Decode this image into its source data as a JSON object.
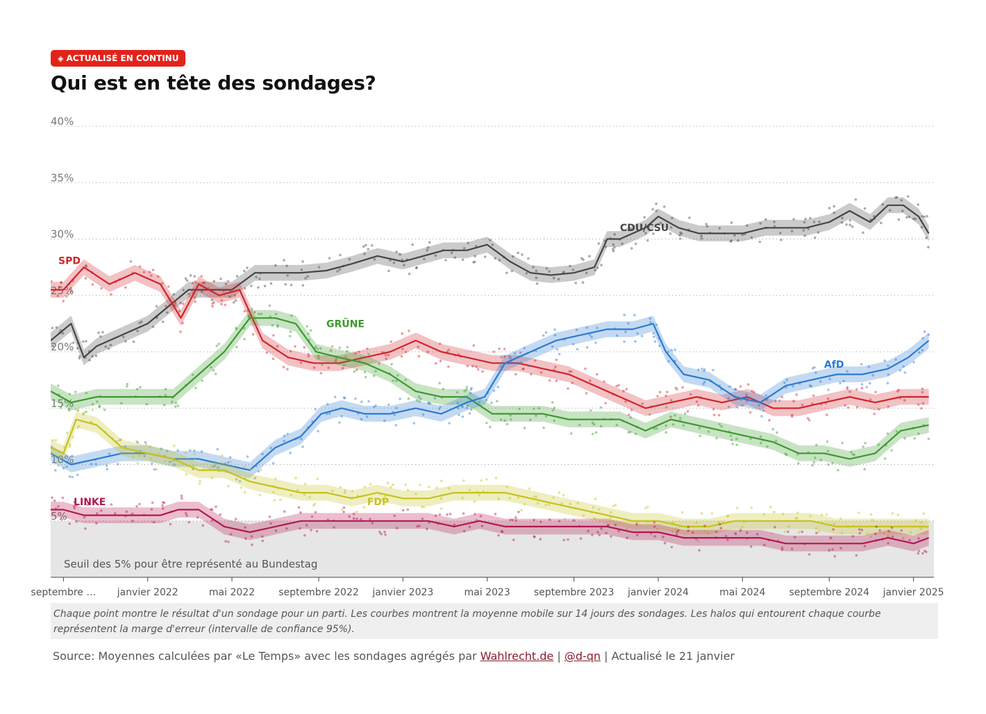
{
  "badge": {
    "icon": "diamond-icon",
    "label": "ACTUALISÉ EN CONTINU",
    "color": "#e2231a"
  },
  "title": "Qui est en tête des sondages?",
  "chart_data": {
    "type": "line",
    "title": "Qui est en tête des sondages?",
    "xlabel": "",
    "ylabel": "",
    "ylim": [
      0,
      40
    ],
    "xlim": [
      2021.62,
      2025.08
    ],
    "grid": true,
    "y_ticks": [
      "5%",
      "10%",
      "15%",
      "20%",
      "25%",
      "30%",
      "35%",
      "40%"
    ],
    "y_tick_values": [
      5,
      10,
      15,
      20,
      25,
      30,
      35,
      40
    ],
    "x_tick_values": [
      2021.67,
      2022.0,
      2022.33,
      2022.67,
      2023.0,
      2023.33,
      2023.67,
      2024.0,
      2024.33,
      2024.67,
      2025.0
    ],
    "x_ticks": [
      "septembre …",
      "janvier 2022",
      "mai 2022",
      "septembre 2022",
      "janvier 2023",
      "mai 2023",
      "septembre 2023",
      "janvier 2024",
      "mai 2024",
      "septembre 2024",
      "janvier 2025"
    ],
    "threshold": {
      "value": 5,
      "label": "Seuil des 5% pour être représenté au Bundestag"
    },
    "series": [
      {
        "name": "CDU/CSU",
        "color": "#454545",
        "x": [
          2021.62,
          2021.7,
          2021.75,
          2021.8,
          2021.9,
          2022.0,
          2022.08,
          2022.16,
          2022.25,
          2022.33,
          2022.42,
          2022.5,
          2022.6,
          2022.7,
          2022.8,
          2022.9,
          2023.0,
          2023.08,
          2023.16,
          2023.25,
          2023.33,
          2023.42,
          2023.5,
          2023.58,
          2023.67,
          2023.75,
          2023.8,
          2023.85,
          2023.95,
          2024.0,
          2024.08,
          2024.16,
          2024.25,
          2024.33,
          2024.42,
          2024.5,
          2024.58,
          2024.67,
          2024.75,
          2024.83,
          2024.9,
          2024.96,
          2025.02,
          2025.06
        ],
        "y": [
          21.0,
          22.5,
          19.5,
          20.5,
          21.5,
          22.5,
          24.0,
          25.5,
          25.5,
          25.5,
          27.0,
          27.0,
          27.0,
          27.2,
          27.8,
          28.5,
          28.0,
          28.5,
          29.0,
          29.0,
          29.5,
          28.0,
          27.0,
          26.8,
          27.0,
          27.5,
          30.0,
          30.0,
          31.0,
          32.0,
          31.0,
          30.5,
          30.5,
          30.5,
          31.0,
          31.0,
          31.0,
          31.5,
          32.5,
          31.5,
          33.0,
          33.0,
          32.0,
          30.5
        ]
      },
      {
        "name": "SPD",
        "color": "#d1232a",
        "x": [
          2021.62,
          2021.67,
          2021.75,
          2021.85,
          2021.95,
          2022.05,
          2022.13,
          2022.2,
          2022.28,
          2022.36,
          2022.45,
          2022.55,
          2022.65,
          2022.75,
          2022.85,
          2022.95,
          2023.05,
          2023.15,
          2023.25,
          2023.35,
          2023.45,
          2023.55,
          2023.65,
          2023.75,
          2023.85,
          2023.95,
          2024.05,
          2024.15,
          2024.25,
          2024.35,
          2024.45,
          2024.55,
          2024.65,
          2024.75,
          2024.85,
          2024.95,
          2025.06
        ],
        "y": [
          25.5,
          25.5,
          27.5,
          26.0,
          27.0,
          26.0,
          23.0,
          26.0,
          25.0,
          25.5,
          21.0,
          19.5,
          19.0,
          19.0,
          19.5,
          20.0,
          21.0,
          20.0,
          19.5,
          19.0,
          19.0,
          18.5,
          18.0,
          17.0,
          16.0,
          15.0,
          15.5,
          16.0,
          15.5,
          16.0,
          15.0,
          15.0,
          15.5,
          16.0,
          15.5,
          16.0,
          16.0
        ]
      },
      {
        "name": "GRÜNE",
        "color": "#3a9a2b",
        "x": [
          2021.62,
          2021.7,
          2021.8,
          2021.9,
          2022.0,
          2022.1,
          2022.2,
          2022.3,
          2022.4,
          2022.5,
          2022.58,
          2022.66,
          2022.75,
          2022.85,
          2022.95,
          2023.05,
          2023.15,
          2023.25,
          2023.35,
          2023.45,
          2023.55,
          2023.65,
          2023.75,
          2023.85,
          2023.95,
          2024.05,
          2024.15,
          2024.25,
          2024.35,
          2024.45,
          2024.55,
          2024.65,
          2024.75,
          2024.85,
          2024.95,
          2025.06
        ],
        "y": [
          16.5,
          15.5,
          16.0,
          16.0,
          16.0,
          16.0,
          18.0,
          20.0,
          23.0,
          23.0,
          22.5,
          20.0,
          19.5,
          19.0,
          18.0,
          16.5,
          16.0,
          16.0,
          14.5,
          14.5,
          14.5,
          14.0,
          14.0,
          14.0,
          13.0,
          14.0,
          13.5,
          13.0,
          12.5,
          12.0,
          11.0,
          11.0,
          10.5,
          11.0,
          13.0,
          13.5
        ]
      },
      {
        "name": "AfD",
        "color": "#2a7ad1",
        "x": [
          2021.62,
          2021.7,
          2021.8,
          2021.9,
          2022.0,
          2022.1,
          2022.2,
          2022.3,
          2022.4,
          2022.5,
          2022.6,
          2022.68,
          2022.76,
          2022.85,
          2022.95,
          2023.05,
          2023.15,
          2023.25,
          2023.32,
          2023.4,
          2023.5,
          2023.6,
          2023.7,
          2023.8,
          2023.9,
          2023.98,
          2024.03,
          2024.1,
          2024.2,
          2024.3,
          2024.4,
          2024.5,
          2024.6,
          2024.7,
          2024.8,
          2024.9,
          2024.98,
          2025.06
        ],
        "y": [
          11.0,
          10.0,
          10.5,
          11.0,
          11.0,
          10.5,
          10.5,
          10.0,
          9.5,
          11.5,
          12.5,
          14.5,
          15.0,
          14.5,
          14.5,
          15.0,
          14.5,
          15.5,
          16.0,
          19.0,
          20.0,
          21.0,
          21.5,
          22.0,
          22.0,
          22.5,
          20.0,
          18.0,
          17.5,
          16.0,
          15.5,
          17.0,
          17.5,
          18.0,
          18.0,
          18.5,
          19.5,
          21.0
        ]
      },
      {
        "name": "FDP",
        "color": "#c6c11d",
        "x": [
          2021.62,
          2021.67,
          2021.72,
          2021.8,
          2021.9,
          2022.0,
          2022.1,
          2022.2,
          2022.3,
          2022.4,
          2022.5,
          2022.6,
          2022.7,
          2022.8,
          2022.9,
          2023.0,
          2023.1,
          2023.2,
          2023.3,
          2023.4,
          2023.5,
          2023.6,
          2023.7,
          2023.8,
          2023.9,
          2024.0,
          2024.1,
          2024.2,
          2024.3,
          2024.4,
          2024.5,
          2024.6,
          2024.7,
          2024.8,
          2024.9,
          2025.0,
          2025.06
        ],
        "y": [
          11.5,
          11.0,
          14.0,
          13.5,
          11.5,
          11.0,
          10.5,
          9.5,
          9.5,
          8.5,
          8.0,
          7.5,
          7.5,
          7.0,
          7.5,
          7.0,
          7.0,
          7.5,
          7.5,
          7.5,
          7.0,
          6.5,
          6.0,
          5.5,
          5.0,
          5.0,
          4.5,
          4.5,
          5.0,
          5.0,
          5.0,
          5.0,
          4.5,
          4.5,
          4.5,
          4.5,
          4.5
        ]
      },
      {
        "name": "LINKE",
        "color": "#b2174f",
        "x": [
          2021.62,
          2021.67,
          2021.75,
          2021.85,
          2021.95,
          2022.05,
          2022.12,
          2022.2,
          2022.3,
          2022.4,
          2022.5,
          2022.6,
          2022.7,
          2022.8,
          2022.9,
          2023.0,
          2023.1,
          2023.2,
          2023.3,
          2023.4,
          2023.5,
          2023.6,
          2023.7,
          2023.8,
          2023.9,
          2024.0,
          2024.1,
          2024.2,
          2024.3,
          2024.4,
          2024.5,
          2024.6,
          2024.7,
          2024.8,
          2024.9,
          2025.0,
          2025.06
        ],
        "y": [
          6.0,
          6.0,
          5.5,
          5.5,
          5.5,
          5.5,
          6.0,
          6.0,
          4.5,
          4.0,
          4.5,
          5.0,
          5.0,
          5.0,
          5.0,
          5.0,
          5.0,
          4.5,
          5.0,
          4.5,
          4.5,
          4.5,
          4.5,
          4.5,
          4.0,
          4.0,
          3.5,
          3.5,
          3.5,
          3.5,
          3.0,
          3.0,
          3.0,
          3.0,
          3.5,
          3.0,
          3.5
        ]
      }
    ],
    "series_labels": [
      {
        "series": "CDU/CSU",
        "text": "CDU/CSU",
        "x": 2023.85,
        "y": 30.7
      },
      {
        "series": "SPD",
        "text": "SPD",
        "x": 2021.65,
        "y": 27.8
      },
      {
        "series": "GRÜNE",
        "text": "GRÜNE",
        "x": 2022.7,
        "y": 22.2
      },
      {
        "series": "AfD",
        "text": "AfD",
        "x": 2024.65,
        "y": 18.6
      },
      {
        "series": "FDP",
        "text": "FDP",
        "x": 2022.86,
        "y": 6.4
      },
      {
        "series": "LINKE",
        "text": "LINKE",
        "x": 2021.71,
        "y": 6.4
      }
    ]
  },
  "note": "Chaque point montre le résultat d'un sondage pour un parti. Les courbes montrent la moyenne mobile sur 14 jours des sondages. Les halos qui entourent chaque courbe représentent la marge d'erreur (intervalle de confiance 95%).",
  "source": {
    "prefix": "Source: Moyennes calculées par «Le Temps» avec les sondages agrégés par ",
    "link1": "Wahlrecht.de",
    "sep": " | ",
    "link2": "@d-qn",
    "suffix": " | Actualisé le 21 janvier"
  }
}
